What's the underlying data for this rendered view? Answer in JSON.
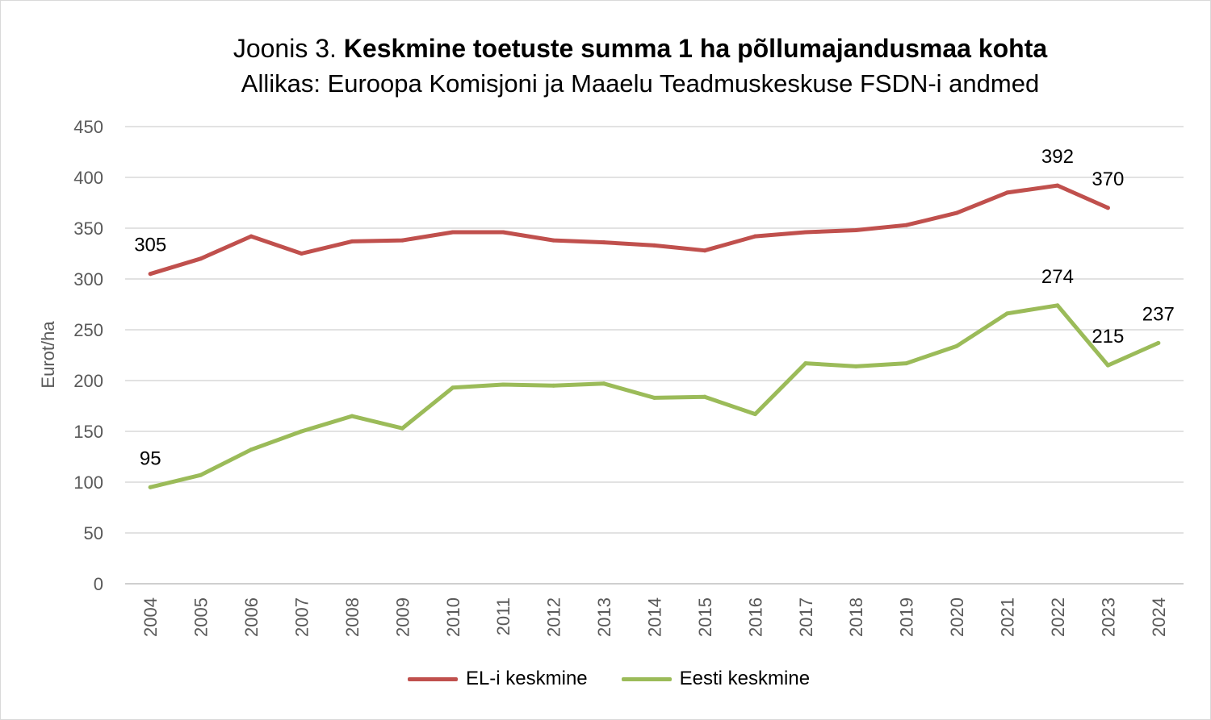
{
  "title": {
    "prefix": "Joonis 3.",
    "main": "Keskmine toetuste summa 1 ha põllumajandusmaa kohta",
    "subtitle": "Allikas: Euroopa Komisjoni ja Maaelu Teadmuskeskuse FSDN-i andmed"
  },
  "chart_data": {
    "type": "line",
    "x": [
      "2004",
      "2005",
      "2006",
      "2007",
      "2008",
      "2009",
      "2010",
      "2011",
      "2012",
      "2013",
      "2014",
      "2015",
      "2016",
      "2017",
      "2018",
      "2019",
      "2020",
      "2021",
      "2022",
      "2023",
      "2024"
    ],
    "series": [
      {
        "name": "EL-i keskmine",
        "color": "#c0504d",
        "values": [
          305,
          320,
          342,
          325,
          337,
          338,
          346,
          346,
          338,
          336,
          333,
          328,
          342,
          346,
          348,
          353,
          365,
          385,
          392,
          370,
          null
        ]
      },
      {
        "name": "Eesti keskmine",
        "color": "#9bbb59",
        "values": [
          95,
          107,
          132,
          150,
          165,
          153,
          193,
          196,
          195,
          197,
          183,
          184,
          167,
          217,
          214,
          217,
          234,
          266,
          274,
          215,
          237
        ]
      }
    ],
    "data_labels": [
      {
        "series": 0,
        "x": "2004",
        "text": "305"
      },
      {
        "series": 0,
        "x": "2022",
        "text": "392"
      },
      {
        "series": 0,
        "x": "2023",
        "text": "370"
      },
      {
        "series": 1,
        "x": "2004",
        "text": "95"
      },
      {
        "series": 1,
        "x": "2022",
        "text": "274"
      },
      {
        "series": 1,
        "x": "2023",
        "text": "215"
      },
      {
        "series": 1,
        "x": "2024",
        "text": "237"
      }
    ],
    "xlabel": "",
    "ylabel": "Eurot/ha",
    "ylim": [
      0,
      450
    ],
    "yticks": [
      0,
      50,
      100,
      150,
      200,
      250,
      300,
      350,
      400,
      450
    ],
    "grid": true,
    "legend_position": "bottom"
  }
}
